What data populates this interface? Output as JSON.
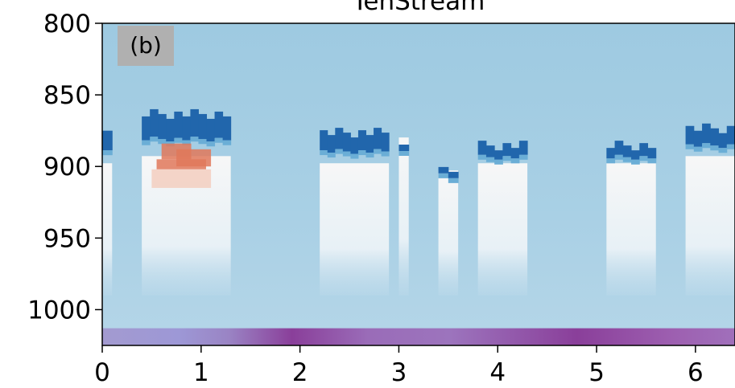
{
  "chart_data": {
    "type": "heatmap",
    "title": "TenStream",
    "panel_label": "(b)",
    "xlabel": "",
    "ylabel": "",
    "xlim": [
      0,
      6.4
    ],
    "ylim": [
      1025,
      800
    ],
    "x_ticks": [
      0,
      1,
      2,
      3,
      4,
      5,
      6
    ],
    "y_ticks": [
      800,
      850,
      900,
      950,
      1000
    ],
    "colors": {
      "background": "#9ecae1",
      "cloud_top_cooling": "#2166ac",
      "below_cloud": "#f7f7f7",
      "warming": "#e0785a",
      "surface_band": "#8a3f9a",
      "surface_band_light": "#a39ad0"
    },
    "cloud_columns": [
      {
        "x_start": 0.0,
        "x_end": 0.1,
        "top": 875,
        "base": 900
      },
      {
        "x_start": 0.4,
        "x_end": 1.3,
        "top": 860,
        "base": 895
      },
      {
        "x_start": 2.2,
        "x_end": 2.9,
        "top": 873,
        "base": 900
      },
      {
        "x_start": 3.0,
        "x_end": 3.1,
        "top": 878,
        "base": 882
      },
      {
        "x_start": 3.4,
        "x_end": 3.6,
        "top": 897,
        "base": 905
      },
      {
        "x_start": 3.8,
        "x_end": 4.3,
        "top": 882,
        "base": 900
      },
      {
        "x_start": 5.1,
        "x_end": 5.6,
        "top": 882,
        "base": 900
      },
      {
        "x_start": 5.9,
        "x_end": 6.4,
        "top": 870,
        "base": 895
      }
    ]
  }
}
